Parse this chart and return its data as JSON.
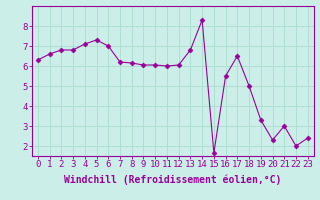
{
  "x": [
    0,
    1,
    2,
    3,
    4,
    5,
    6,
    7,
    8,
    9,
    10,
    11,
    12,
    13,
    14,
    15,
    16,
    17,
    18,
    19,
    20,
    21,
    22,
    23
  ],
  "y": [
    6.3,
    6.6,
    6.8,
    6.8,
    7.1,
    7.3,
    7.0,
    6.2,
    6.15,
    6.05,
    6.05,
    6.0,
    6.05,
    6.8,
    8.3,
    1.65,
    5.5,
    6.5,
    5.0,
    3.3,
    2.3,
    3.0,
    2.0,
    2.4
  ],
  "line_color": "#990099",
  "marker": "D",
  "marker_size": 2.5,
  "bg_color": "#cceee8",
  "grid_color": "#aaddcc",
  "xlabel": "Windchill (Refroidissement éolien,°C)",
  "ylim": [
    1.5,
    9.0
  ],
  "xlim": [
    -0.5,
    23.5
  ],
  "yticks": [
    2,
    3,
    4,
    5,
    6,
    7,
    8
  ],
  "xticks": [
    0,
    1,
    2,
    3,
    4,
    5,
    6,
    7,
    8,
    9,
    10,
    11,
    12,
    13,
    14,
    15,
    16,
    17,
    18,
    19,
    20,
    21,
    22,
    23
  ],
  "tick_color": "#990099",
  "label_color": "#990099",
  "spine_color": "#990099",
  "axis_line_color": "#990099",
  "font_size": 6.5,
  "xlabel_font_size": 7
}
